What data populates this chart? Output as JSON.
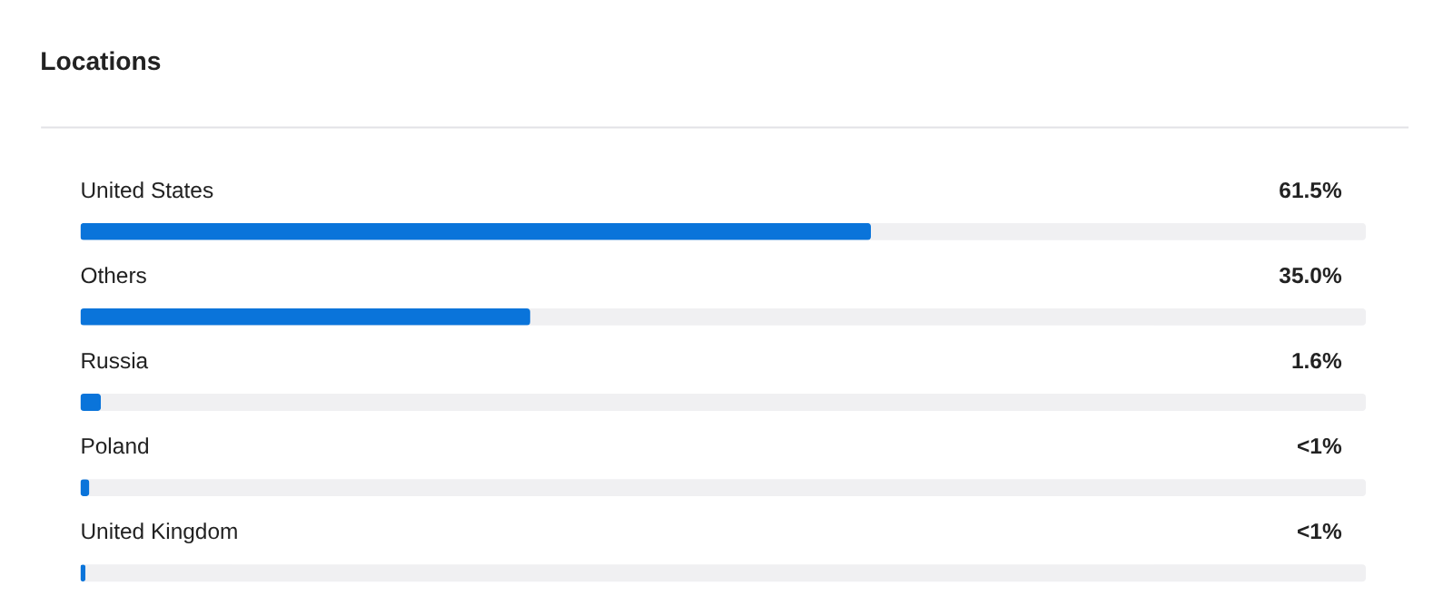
{
  "chart_data": {
    "type": "bar",
    "orientation": "horizontal",
    "title": "Locations",
    "categories": [
      "United States",
      "Others",
      "Russia",
      "Poland",
      "United Kingdom"
    ],
    "values": [
      61.5,
      35.0,
      1.6,
      0.7,
      0.4
    ],
    "value_labels": [
      "61.5%",
      "35.0%",
      "1.6%",
      "<1%",
      "<1%"
    ],
    "color": "#0a74da",
    "xlim": [
      0,
      100
    ],
    "tick_labels": false,
    "grid": false
  }
}
